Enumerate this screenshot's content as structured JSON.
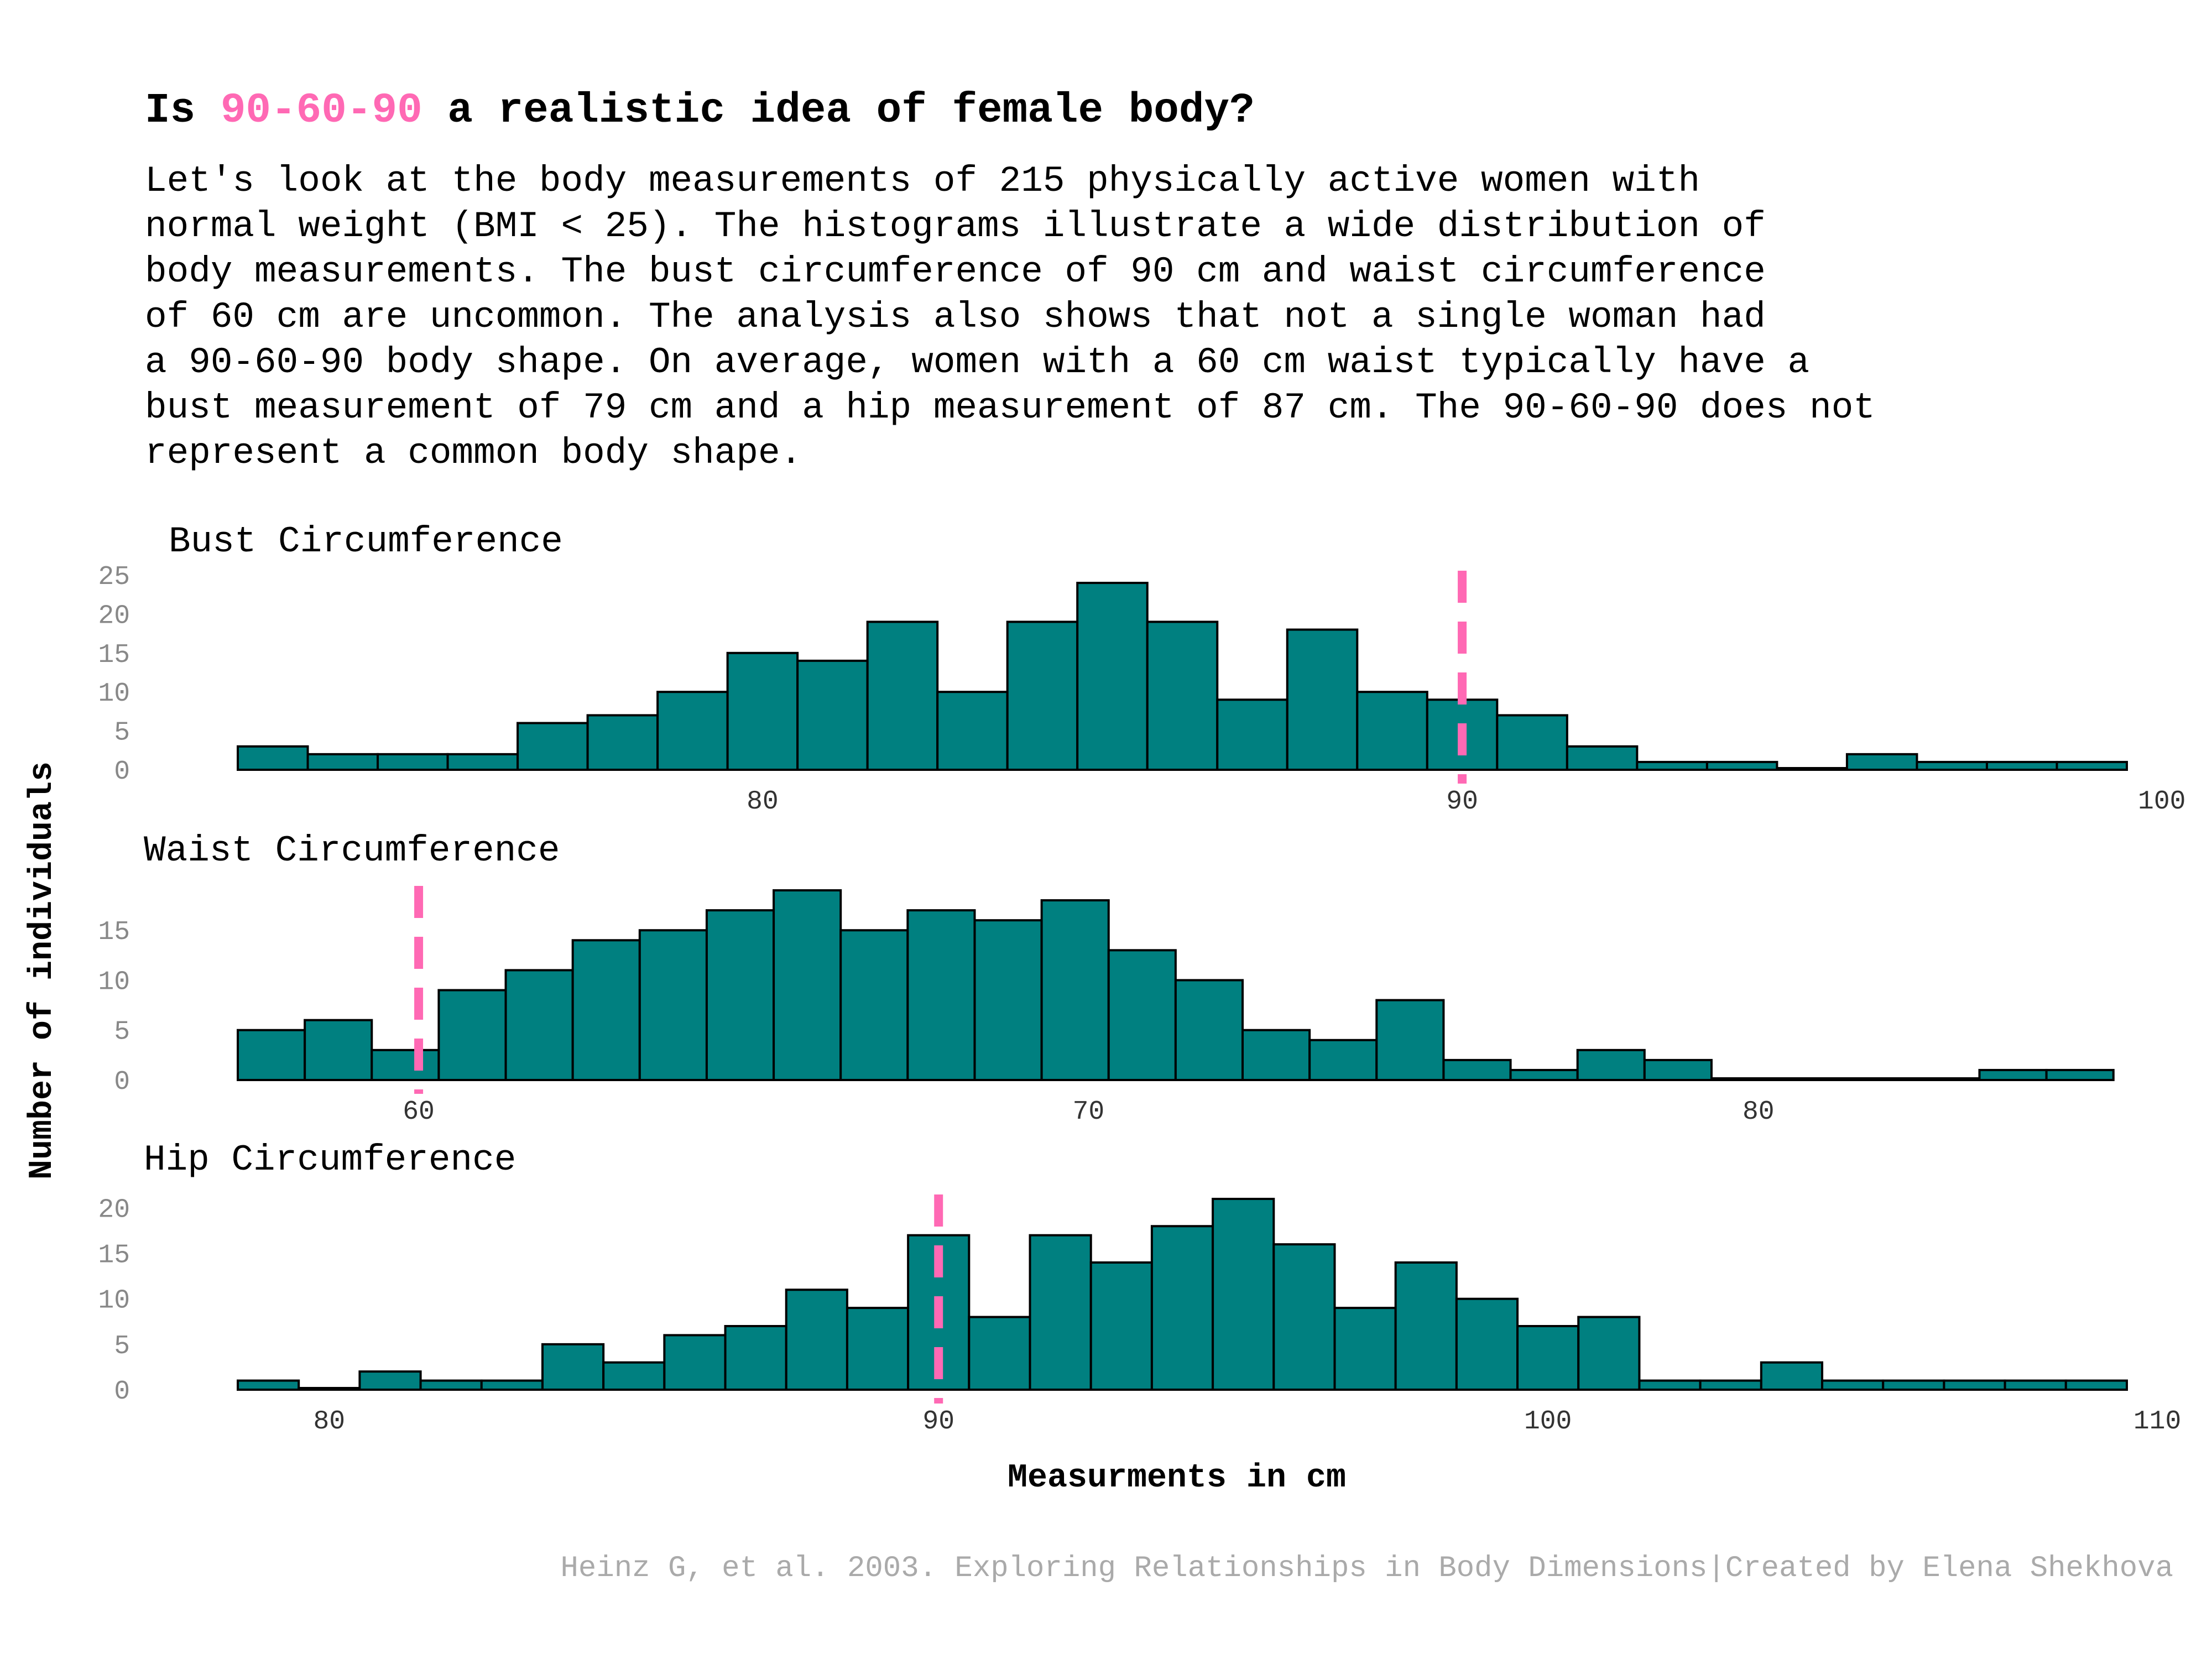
{
  "title": {
    "prefix": "Is ",
    "highlight": "90-60-90",
    "suffix": " a realistic idea of female body?"
  },
  "subtitle_lines": [
    "Let's look at the body measurements of 215 physically active women with",
    "normal weight (BMI < 25). The histograms illustrate a wide distribution of",
    "body measurements. The bust circumference of 90 cm and waist circumference",
    "of 60 cm are uncommon. The analysis also shows that not a single woman had",
    "a 90-60-90 body shape. On average, women with a 60 cm waist typically have a",
    "bust measurement of 79 cm and a hip measurement of 87 cm. The 90-60-90 does not",
    "represent a common body shape."
  ],
  "ylabel": "Number of individuals",
  "xlabel": "Measurments in cm",
  "caption": "Heinz G, et al. 2003. Exploring Relationships in Body Dimensions|Created by Elena Shekhova",
  "colors": {
    "bar": "#008080",
    "bar_edge": "#000000",
    "reference": "#ff69b4",
    "highlight": "#ff69b4"
  },
  "chart_data": [
    {
      "type": "bar",
      "title": "Bust Circumference",
      "xlim": [
        72.5,
        99.5
      ],
      "xticks": [
        80,
        90,
        100
      ],
      "yticks": [
        0,
        5,
        10,
        15,
        20,
        25
      ],
      "ylim": [
        0,
        25
      ],
      "reference_line": 90,
      "bin_start": 72.5,
      "bin_width": 1.0,
      "counts": [
        3,
        2,
        2,
        2,
        6,
        7,
        10,
        15,
        14,
        19,
        10,
        19,
        24,
        19,
        9,
        18,
        10,
        9,
        7,
        3,
        1,
        1,
        0,
        2,
        1,
        1,
        1
      ]
    },
    {
      "type": "bar",
      "title": "Waist Circumference",
      "xlim": [
        57.3,
        85.5
      ],
      "xticks": [
        60,
        70,
        80
      ],
      "yticks": [
        0,
        5,
        10,
        15
      ],
      "ylim": [
        0,
        19
      ],
      "reference_line": 60,
      "bin_start": 57.3,
      "bin_width": 1.0,
      "counts": [
        5,
        6,
        3,
        9,
        11,
        14,
        15,
        17,
        19,
        15,
        17,
        16,
        18,
        13,
        10,
        5,
        4,
        8,
        2,
        1,
        3,
        2,
        0,
        0,
        0,
        0,
        1,
        1
      ]
    },
    {
      "type": "bar",
      "title": "Hip Circumference",
      "xlim": [
        78.5,
        109.5
      ],
      "xticks": [
        80,
        90,
        100,
        110
      ],
      "yticks": [
        0,
        5,
        10,
        15,
        20
      ],
      "ylim": [
        0,
        21
      ],
      "reference_line": 90,
      "bin_start": 78.5,
      "bin_width": 1.0,
      "counts": [
        1,
        0,
        2,
        1,
        1,
        5,
        3,
        6,
        7,
        11,
        9,
        17,
        8,
        17,
        14,
        18,
        21,
        16,
        9,
        14,
        10,
        7,
        8,
        1,
        1,
        3,
        1,
        1,
        1,
        1,
        1
      ]
    }
  ]
}
